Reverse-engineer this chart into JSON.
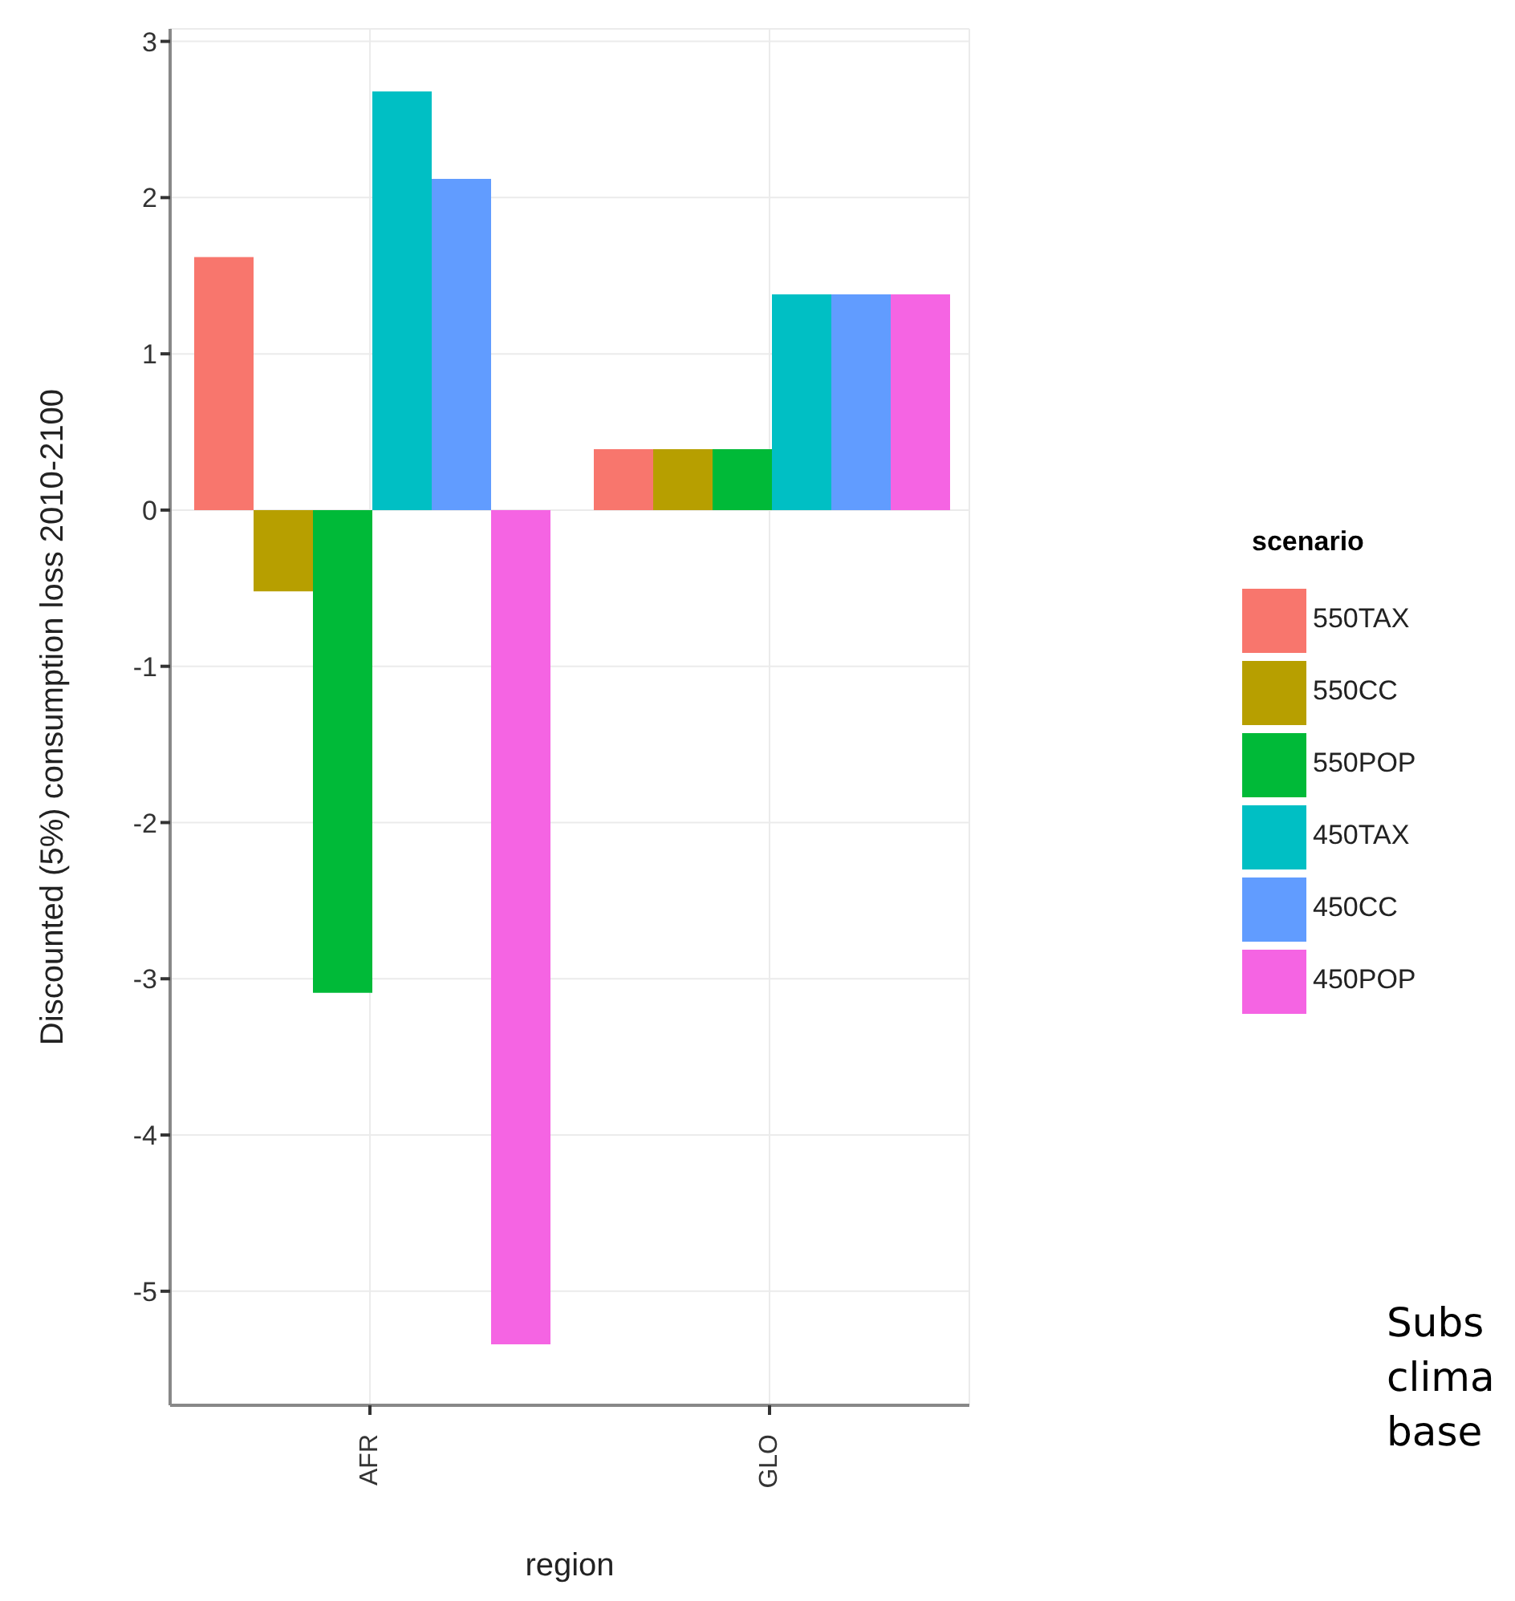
{
  "chart_data": {
    "type": "bar",
    "xlabel": "region",
    "ylabel": "Discounted (5%) consumption loss 2010-2100",
    "legend_title": "scenario",
    "categories": [
      "AFR",
      "GLO"
    ],
    "series": [
      {
        "name": "550TAX",
        "color": "#f8766d",
        "values": [
          1.62,
          0.39
        ]
      },
      {
        "name": "550CC",
        "color": "#b79f00",
        "values": [
          -0.52,
          0.39
        ]
      },
      {
        "name": "550POP",
        "color": "#00ba38",
        "values": [
          -3.09,
          0.39
        ]
      },
      {
        "name": "450TAX",
        "color": "#00bfc4",
        "values": [
          2.68,
          1.38
        ]
      },
      {
        "name": "450CC",
        "color": "#619cff",
        "values": [
          2.12,
          1.38
        ]
      },
      {
        "name": "450POP",
        "color": "#f564e3",
        "values": [
          -5.34,
          1.38
        ]
      }
    ],
    "ylim": [
      -5.73,
      3.08
    ],
    "yticks": [
      -5,
      -4,
      -3,
      -2,
      -1,
      0,
      1,
      2,
      3
    ],
    "grid": true,
    "legend": "right",
    "annotations": [
      "Subs\nclima\nbase"
    ]
  }
}
